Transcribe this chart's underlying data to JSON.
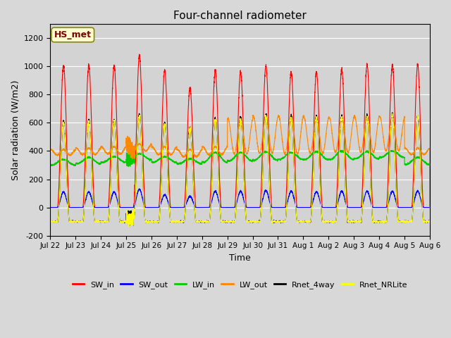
{
  "title": "Four-channel radiometer",
  "xlabel": "Time",
  "ylabel": "Solar radiation (W/m2)",
  "ylim": [
    -200,
    1300
  ],
  "yticks": [
    -200,
    0,
    200,
    400,
    600,
    800,
    1000,
    1200
  ],
  "fig_bg_color": "#d8d8d8",
  "plot_bg_color": "#d3d3d3",
  "grid_color": "#ffffff",
  "station_label": "HS_met",
  "legend_entries": [
    "SW_in",
    "SW_out",
    "LW_in",
    "LW_out",
    "Rnet_4way",
    "Rnet_NRLite"
  ],
  "legend_colors": [
    "#ff0000",
    "#0000ff",
    "#00cc00",
    "#ff8800",
    "#000000",
    "#ffff00"
  ],
  "x_tick_labels": [
    "Jul 22",
    "Jul 23",
    "Jul 24",
    "Jul 25",
    "Jul 26",
    "Jul 27",
    "Jul 28",
    "Jul 29",
    "Jul 30",
    "Jul 31",
    "Aug 1",
    "Aug 2",
    "Aug 3",
    "Aug 4",
    "Aug 5",
    "Aug 6"
  ],
  "num_days": 15,
  "points_per_day": 288,
  "sw_in_peak": [
    1005,
    1007,
    1007,
    1070,
    970,
    850,
    970,
    960,
    1003,
    958,
    963,
    975,
    1010,
    1010,
    1010
  ],
  "sw_out_peak": [
    110,
    110,
    110,
    130,
    90,
    80,
    115,
    115,
    120,
    115,
    110,
    115,
    115,
    115,
    115
  ],
  "lw_in_base": [
    300,
    310,
    320,
    340,
    320,
    310,
    320,
    330,
    335,
    340,
    340,
    340,
    345,
    355,
    305
  ],
  "lw_in_peak": [
    340,
    355,
    360,
    380,
    360,
    345,
    390,
    390,
    395,
    390,
    395,
    400,
    395,
    400,
    355
  ],
  "lw_out_base": [
    370,
    375,
    380,
    400,
    375,
    360,
    375,
    380,
    385,
    380,
    385,
    390,
    390,
    400,
    375
  ],
  "lw_out_peak": [
    410,
    420,
    430,
    450,
    430,
    410,
    430,
    630,
    650,
    650,
    640,
    640,
    650,
    645,
    420
  ],
  "rnet_peak": [
    610,
    620,
    620,
    660,
    600,
    570,
    630,
    640,
    660,
    650,
    650,
    650,
    655,
    665,
    650
  ],
  "rnet_nrlite_peak": [
    600,
    610,
    610,
    650,
    590,
    560,
    620,
    630,
    650,
    640,
    640,
    640,
    645,
    655,
    640
  ],
  "night_rnet": -100
}
